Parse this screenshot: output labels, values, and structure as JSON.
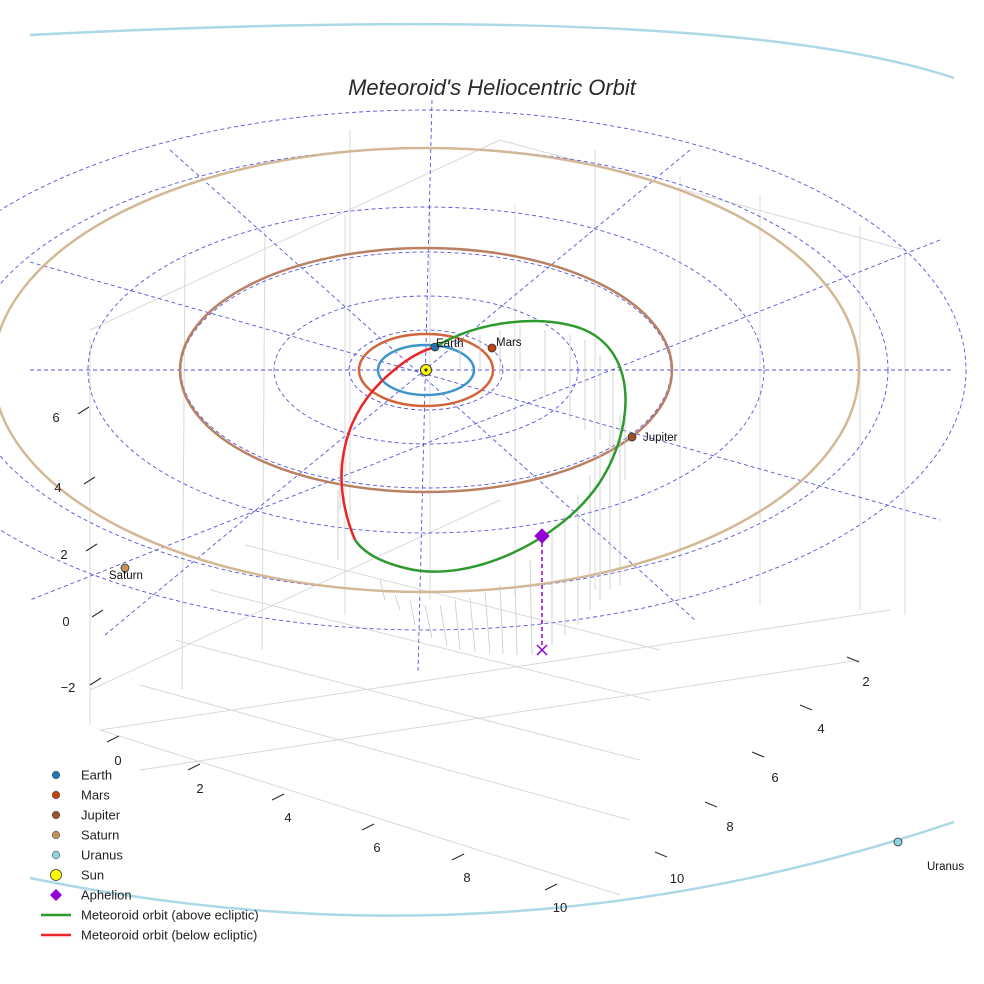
{
  "chart_data": {
    "type": "scatter",
    "title": "Meteoroid's Heliocentric Orbit",
    "axes": {
      "x_ticks": [
        "0",
        "2",
        "4",
        "6",
        "8",
        "10"
      ],
      "y_ticks": [
        "2",
        "4",
        "6",
        "8",
        "10"
      ],
      "z_ticks": [
        "−2",
        "0",
        "2",
        "4",
        "6"
      ],
      "grid": true
    },
    "planets": [
      {
        "name": "Earth",
        "color": "#1f77b4",
        "orbit_color": "#3d94c9"
      },
      {
        "name": "Mars",
        "color": "#c1440e",
        "orbit_color": "#d0643a"
      },
      {
        "name": "Jupiter",
        "color": "#a0522d",
        "orbit_color": "#b98062"
      },
      {
        "name": "Saturn",
        "color": "#c4915a",
        "orbit_color": "#d3b896"
      },
      {
        "name": "Uranus",
        "color": "#8fd3df",
        "orbit_color": "#add8e6"
      }
    ],
    "sun": {
      "name": "Sun",
      "color": "#ffff00"
    },
    "aphelion": {
      "name": "Aphelion",
      "color": "#9400d3"
    },
    "meteoroid": {
      "above_label": "Meteoroid orbit (above ecliptic)",
      "below_label": "Meteoroid orbit (below ecliptic)",
      "above_color": "#2e9a2e",
      "below_color": "#e82626"
    },
    "legend": {
      "placement": "bottom-left",
      "entries": [
        "Earth",
        "Mars",
        "Jupiter",
        "Saturn",
        "Uranus",
        "Sun",
        "Aphelion",
        "Meteoroid orbit (above ecliptic)",
        "Meteoroid orbit (below ecliptic)"
      ]
    }
  }
}
